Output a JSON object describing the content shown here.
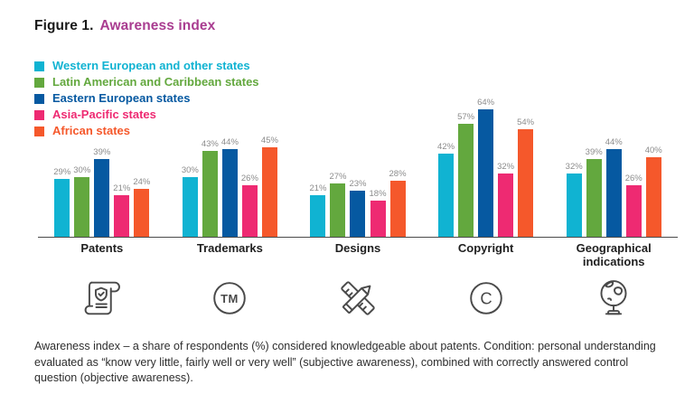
{
  "title": {
    "prefix": "Figure 1.",
    "label": "Awareness index"
  },
  "chart_data": {
    "type": "bar",
    "title": "Awareness index",
    "categories": [
      "Patents",
      "Trademarks",
      "Designs",
      "Copyright",
      "Geographical indications"
    ],
    "series": [
      {
        "name": "Western European and other states",
        "color": "#10b3d2",
        "values": [
          29,
          30,
          21,
          42,
          32
        ]
      },
      {
        "name": "Latin American and Caribbean states",
        "color": "#63a83e",
        "values": [
          30,
          43,
          27,
          57,
          39
        ]
      },
      {
        "name": "Eastern European states",
        "color": "#0659a1",
        "values": [
          39,
          44,
          23,
          64,
          44
        ]
      },
      {
        "name": "Asia-Pacific states",
        "color": "#ee2a72",
        "values": [
          21,
          26,
          18,
          32,
          26
        ]
      },
      {
        "name": "African states",
        "color": "#f5582b",
        "values": [
          24,
          45,
          28,
          54,
          40
        ]
      }
    ],
    "value_suffix": "%",
    "ylim": [
      0,
      70
    ],
    "grid": false,
    "legend_position": "top-left",
    "category_icons": [
      "patent-scroll-icon",
      "trademark-circle-icon",
      "pencil-ruler-icon",
      "copyright-circle-icon",
      "globe-icon"
    ]
  },
  "caption": "Awareness index – a share of respondents (%) considered knowledgeable about patents. Condition: personal understanding evaluated as “know very little, fairly well or very well” (subjective awareness), combined with correctly answered control question (objective awareness)."
}
